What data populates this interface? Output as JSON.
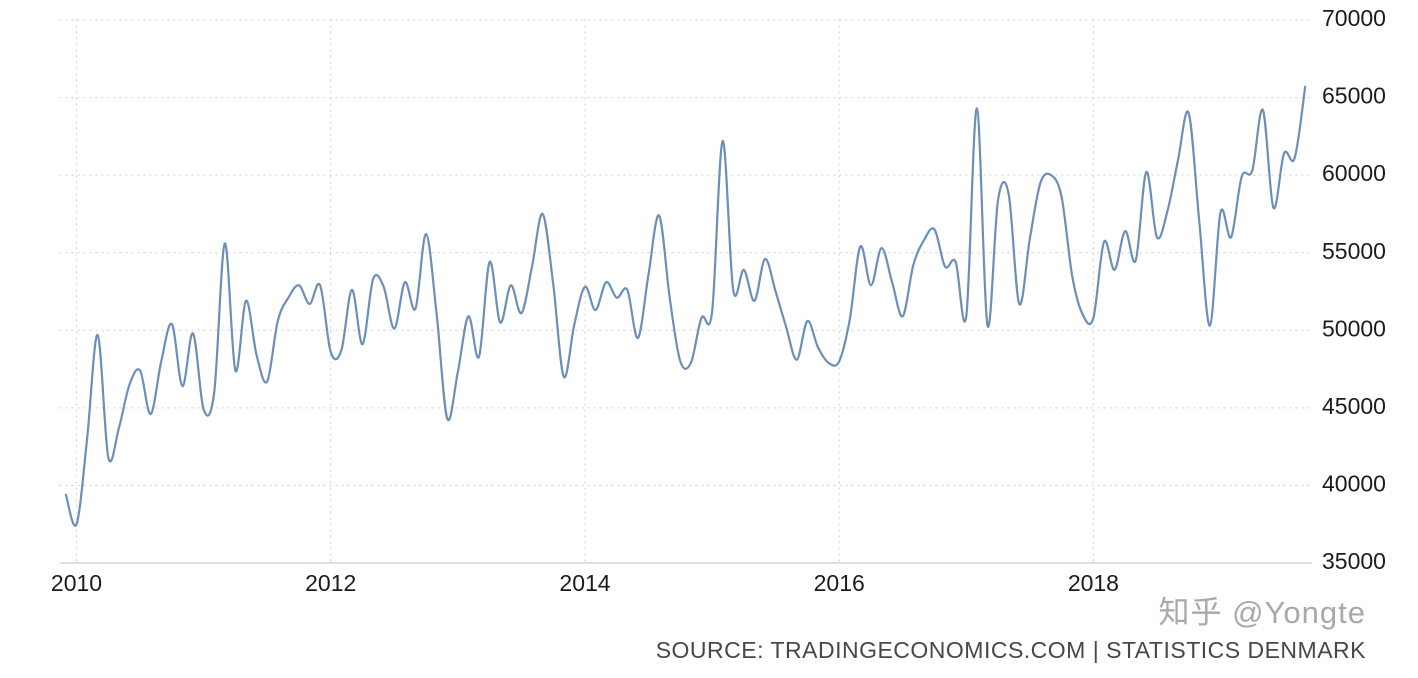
{
  "watermark": {
    "text": "知乎 @Yongte"
  },
  "footer": {
    "source_text": "SOURCE: TRADINGECONOMICS.COM | STATISTICS DENMARK"
  },
  "chart_data": {
    "type": "line",
    "title": "",
    "xlabel": "",
    "ylabel": "",
    "frequency": "monthly",
    "start_month": "2009-12",
    "values": [
      39400,
      37500,
      43000,
      49700,
      41800,
      43700,
      46500,
      47400,
      44600,
      48000,
      50400,
      46400,
      49800,
      44900,
      46000,
      55600,
      47400,
      51900,
      48400,
      46700,
      50600,
      52100,
      52900,
      51700,
      52900,
      48600,
      48700,
      52600,
      49100,
      53300,
      52800,
      50100,
      53100,
      51400,
      56200,
      51000,
      44300,
      47300,
      50900,
      48300,
      54400,
      50500,
      52900,
      51100,
      54100,
      57500,
      53000,
      47000,
      50400,
      52800,
      51300,
      53100,
      52100,
      52600,
      49500,
      53600,
      57400,
      52100,
      48000,
      47900,
      50800,
      51200,
      62200,
      52600,
      53900,
      51900,
      54600,
      52500,
      50200,
      48100,
      50600,
      48900,
      47900,
      48000,
      50700,
      55400,
      52900,
      55300,
      53100,
      50900,
      54200,
      55800,
      56500,
      54100,
      54400,
      50900,
      64300,
      50300,
      58400,
      58800,
      51700,
      55900,
      59500,
      60000,
      58600,
      53500,
      51000,
      50800,
      55700,
      53900,
      56400,
      54500,
      60200,
      56000,
      57700,
      61000,
      64000,
      57000,
      50300,
      57600,
      56000,
      59900,
      60300,
      64200,
      57900,
      61400,
      61100,
      65700
    ],
    "xlim": [
      2009.87,
      2019.72
    ],
    "ylim": [
      35000,
      70000
    ],
    "x_ticks": [
      2010,
      2012,
      2014,
      2016,
      2018
    ],
    "y_ticks": [
      35000,
      40000,
      45000,
      50000,
      55000,
      60000,
      65000,
      70000
    ],
    "grid": true,
    "legend_position": "none",
    "line_color": "#6b8fb7",
    "grid_color": "#c9c9c9",
    "axis_color": "#bdbdbd",
    "tick_label_color": "#1c1c1c"
  }
}
